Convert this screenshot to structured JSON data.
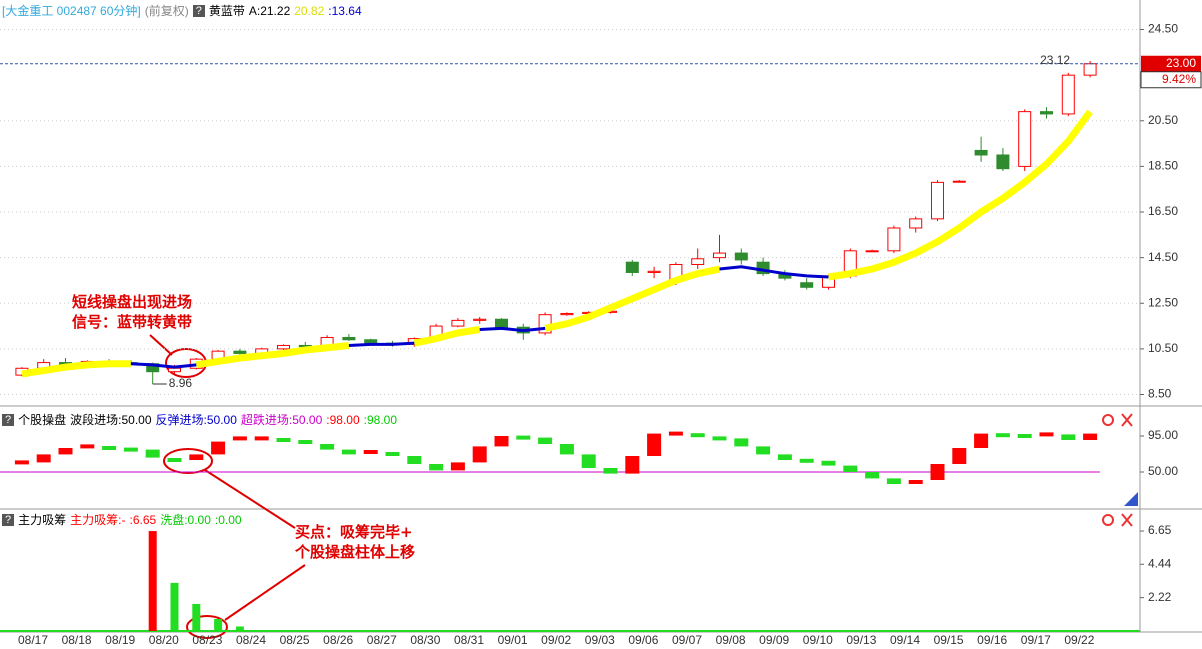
{
  "header": {
    "help": "?",
    "symbol": "[大金重工  002487 60分钟]",
    "adjust": "(前复权)",
    "indicator": "黄蓝带",
    "a_label": "A:21.22",
    "yellow_label": "20.82",
    "blue_label": ":13.64"
  },
  "axis": {
    "dates": [
      "08/17",
      "08/18",
      "08/19",
      "08/20",
      "08/23",
      "08/24",
      "08/25",
      "08/26",
      "08/27",
      "08/30",
      "08/31",
      "09/01",
      "09/02",
      "09/03",
      "09/06",
      "09/07",
      "09/08",
      "09/09",
      "09/10",
      "09/13",
      "09/14",
      "09/15",
      "09/16",
      "09/17",
      "09/22"
    ]
  },
  "chart_data": [
    {
      "type": "candlestick",
      "up_color": "#ff0000",
      "down_color": "#2e8b2e",
      "candles": [
        [
          9.35,
          9.7,
          9.3,
          9.65
        ],
        [
          9.65,
          10.05,
          9.6,
          9.9
        ],
        [
          9.9,
          10.1,
          9.75,
          9.8
        ],
        [
          9.8,
          10.0,
          9.75,
          9.95
        ],
        [
          9.95,
          10.05,
          9.85,
          9.9
        ],
        [
          9.9,
          10.0,
          9.8,
          9.85
        ],
        [
          9.85,
          9.9,
          8.96,
          9.5
        ],
        [
          9.5,
          9.8,
          9.4,
          9.65
        ],
        [
          9.65,
          10.1,
          9.6,
          10.05
        ],
        [
          10.05,
          10.45,
          10.0,
          10.4
        ],
        [
          10.4,
          10.5,
          10.25,
          10.3
        ],
        [
          10.3,
          10.55,
          10.25,
          10.5
        ],
        [
          10.5,
          10.7,
          10.45,
          10.65
        ],
        [
          10.65,
          10.8,
          10.55,
          10.6
        ],
        [
          10.6,
          11.1,
          10.55,
          11.0
        ],
        [
          11.0,
          11.15,
          10.85,
          10.9
        ],
        [
          10.9,
          10.95,
          10.7,
          10.75
        ],
        [
          10.75,
          10.85,
          10.6,
          10.7
        ],
        [
          10.7,
          11.0,
          10.6,
          10.95
        ],
        [
          10.95,
          11.6,
          10.9,
          11.5
        ],
        [
          11.5,
          11.85,
          11.45,
          11.75
        ],
        [
          11.75,
          11.9,
          11.6,
          11.8
        ],
        [
          11.8,
          11.85,
          11.4,
          11.45
        ],
        [
          11.45,
          11.6,
          10.9,
          11.2
        ],
        [
          11.2,
          12.1,
          11.1,
          12.0
        ],
        [
          12.0,
          12.1,
          11.95,
          12.05
        ],
        [
          12.05,
          12.15,
          12.0,
          12.1
        ],
        [
          12.1,
          12.2,
          12.05,
          12.15
        ],
        [
          14.3,
          14.4,
          13.7,
          13.85
        ],
        [
          13.85,
          14.1,
          13.6,
          13.9
        ],
        [
          13.5,
          14.3,
          13.3,
          14.2
        ],
        [
          14.2,
          14.9,
          14.0,
          14.45
        ],
        [
          14.5,
          15.5,
          14.3,
          14.7
        ],
        [
          14.7,
          14.9,
          14.2,
          14.4
        ],
        [
          14.3,
          14.5,
          13.7,
          13.8
        ],
        [
          13.8,
          13.95,
          13.5,
          13.6
        ],
        [
          13.4,
          13.6,
          13.1,
          13.2
        ],
        [
          13.2,
          13.8,
          13.1,
          13.7
        ],
        [
          13.7,
          14.9,
          13.6,
          14.8
        ],
        [
          14.8,
          14.85,
          14.75,
          14.8
        ],
        [
          14.8,
          15.9,
          14.7,
          15.8
        ],
        [
          15.8,
          16.3,
          15.6,
          16.2
        ],
        [
          16.2,
          17.9,
          16.1,
          17.8
        ],
        [
          17.85,
          17.9,
          17.8,
          17.85
        ],
        [
          19.2,
          19.8,
          18.7,
          19.0
        ],
        [
          19.0,
          19.3,
          18.3,
          18.4
        ],
        [
          18.5,
          21.0,
          18.3,
          20.9
        ],
        [
          20.9,
          21.1,
          20.6,
          20.8
        ],
        [
          20.8,
          22.6,
          20.7,
          22.5
        ],
        [
          22.5,
          23.12,
          22.4,
          23.0
        ]
      ],
      "series": [
        {
          "color": "#ffff00",
          "values": [
            9.4,
            9.55,
            9.7,
            9.8,
            9.85,
            9.85,
            null,
            null,
            9.8,
            9.95,
            10.1,
            10.2,
            10.3,
            10.45,
            10.55,
            10.65,
            null,
            null,
            10.75,
            10.95,
            11.2,
            11.35,
            null,
            null,
            11.4,
            11.6,
            11.9,
            12.3,
            12.7,
            13.1,
            13.5,
            13.8,
            14.0,
            null,
            null,
            null,
            null,
            13.65,
            13.8,
            14.0,
            14.3,
            14.7,
            15.2,
            15.8,
            16.5,
            17.1,
            17.8,
            18.6,
            19.6,
            20.9
          ]
        },
        {
          "color": "#0000cc",
          "values": [
            null,
            null,
            null,
            null,
            null,
            9.85,
            9.8,
            9.7,
            9.8,
            null,
            null,
            null,
            null,
            null,
            null,
            10.65,
            10.7,
            10.7,
            10.75,
            null,
            null,
            11.35,
            11.4,
            11.3,
            11.4,
            null,
            null,
            null,
            null,
            null,
            null,
            null,
            14.0,
            14.1,
            13.95,
            13.8,
            13.7,
            13.65,
            null,
            null,
            null,
            null,
            null,
            null,
            null,
            null,
            null,
            null,
            null,
            null
          ]
        }
      ],
      "ylim": [
        8.04,
        24.83
      ],
      "yticks": [
        {
          "value": 24.5,
          "label": "24.50"
        },
        {
          "value": 20.5,
          "label": "20.50"
        },
        {
          "value": 18.5,
          "label": "18.50"
        },
        {
          "value": 16.5,
          "label": "16.50"
        },
        {
          "value": 14.5,
          "label": "14.50"
        },
        {
          "value": 12.5,
          "label": "12.50"
        },
        {
          "value": 10.5,
          "label": "10.50"
        },
        {
          "value": 8.5,
          "label": "8.50"
        }
      ],
      "last_price": {
        "value": 23.0,
        "label": "23.00"
      },
      "change": "9.42%",
      "high_label": 23.12,
      "low_label": 8.96,
      "annotations": [
        "短线操盘出现进场",
        "信号：蓝带转黄带"
      ]
    },
    {
      "type": "bar",
      "help": "?",
      "title": "个股操盘",
      "legend": [
        {
          "label": "波段进场:50.00",
          "color": "#000000"
        },
        {
          "label": "反弹进场:50.00",
          "color": "#0000cc"
        },
        {
          "label": "超跌进场:50.00",
          "color": "#cc00cc"
        },
        {
          "label": ":98.00",
          "color": "#ff0000"
        },
        {
          "label": ":98.00",
          "color": "#00cc00"
        }
      ],
      "up_color": "#ff0000",
      "down_color": "#22dd22",
      "values": [
        62,
        72,
        80,
        82,
        80,
        78,
        68,
        65,
        72,
        88,
        92,
        92,
        90,
        85,
        78,
        72,
        75,
        70,
        60,
        52,
        62,
        82,
        95,
        93,
        85,
        72,
        55,
        48,
        70,
        98,
        98,
        96,
        92,
        82,
        72,
        65,
        64,
        58,
        50,
        42,
        35,
        40,
        60,
        80,
        98,
        96,
        95,
        97,
        90,
        98
      ],
      "level": 50,
      "level_color": "#cc00cc",
      "ylim": [
        5,
        130
      ],
      "yticks": [
        {
          "value": 95,
          "label": "95.00"
        },
        {
          "value": 50,
          "label": "50.00"
        }
      ]
    },
    {
      "type": "bar",
      "help": "?",
      "title": "主力吸筹",
      "legend": [
        {
          "label": "主力吸筹:-",
          "color": "#ff0000"
        },
        {
          "label": ":6.65",
          "color": "#ff0000"
        },
        {
          "label": "洗盘:0.00",
          "color": "#00cc00"
        },
        {
          "label": ":0.00",
          "color": "#00cc00"
        }
      ],
      "series": [
        {
          "color": "#ff0000",
          "values": [
            0,
            0,
            0,
            0,
            0,
            0,
            6.65,
            0,
            0,
            0,
            0,
            0,
            0,
            0,
            0,
            0,
            0,
            0,
            0,
            0,
            0,
            0,
            0,
            0,
            0,
            0,
            0,
            0,
            0,
            0,
            0,
            0,
            0,
            0,
            0,
            0,
            0,
            0,
            0,
            0,
            0,
            0,
            0,
            0,
            0,
            0,
            0,
            0,
            0,
            0
          ]
        },
        {
          "color": "#22dd22",
          "values": [
            0,
            0,
            0,
            0,
            0,
            0,
            0,
            3.2,
            1.8,
            0.8,
            0.3,
            0,
            0,
            0,
            0,
            0,
            0,
            0,
            0,
            0,
            0,
            0,
            0,
            0,
            0,
            0,
            0,
            0,
            0,
            0,
            0,
            0,
            0,
            0,
            0,
            0,
            0,
            0,
            0,
            0,
            0,
            0,
            0,
            0,
            0,
            0,
            0,
            0,
            0,
            0
          ]
        }
      ],
      "ylim": [
        0,
        8.05
      ],
      "yticks": [
        6.65,
        4.44,
        2.22
      ],
      "annotations": [
        "买点：吸筹完毕+",
        "个股操盘柱体上移"
      ]
    }
  ]
}
